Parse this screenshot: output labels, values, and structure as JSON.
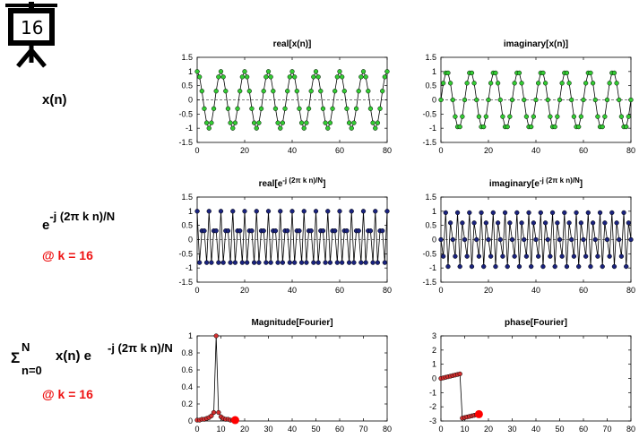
{
  "slide": {
    "number": "16",
    "label_xn": "x(n)",
    "label_exp_base": "e",
    "label_exp_sup": "-j (2π k n)/N",
    "label_k": "@ k = 16",
    "label_sum_sigma": "Σ",
    "label_sum_sup": "N",
    "label_sum_sub": "n=0",
    "label_sum_body": "x(n) e",
    "label_sum_sup2": "-j (2π k n)/N",
    "label_k2": "@ k = 16"
  },
  "colors": {
    "green": "#33cc33",
    "blue": "#1a237e",
    "red": "#d32f2f",
    "bigred": "#ff0000"
  },
  "chart_data": [
    {
      "type": "line",
      "title": "real[x(n)]",
      "xlim": [
        0,
        80
      ],
      "ylim": [
        -1.5,
        1.5
      ],
      "xticks": [
        0,
        20,
        40,
        60,
        80
      ],
      "yticks": [
        1.5,
        1,
        0.5,
        0,
        -0.5,
        -1,
        -1.5
      ],
      "zero_line": true,
      "marker_color": "green",
      "x": [
        0,
        1,
        2,
        3,
        4,
        5,
        6,
        7,
        8,
        9,
        10,
        11,
        12,
        13,
        14,
        15,
        16,
        17,
        18,
        19,
        20,
        21,
        22,
        23,
        24,
        25,
        26,
        27,
        28,
        29,
        30,
        31,
        32,
        33,
        34,
        35,
        36,
        37,
        38,
        39,
        40,
        41,
        42,
        43,
        44,
        45,
        46,
        47,
        48,
        49,
        50,
        51,
        52,
        53,
        54,
        55,
        56,
        57,
        58,
        59,
        60,
        61,
        62,
        63,
        64,
        65,
        66,
        67,
        68,
        69,
        70,
        71,
        72,
        73,
        74,
        75,
        76,
        77,
        78,
        79,
        80
      ],
      "y": [
        1,
        0.81,
        0.31,
        -0.31,
        -0.81,
        -1,
        -0.81,
        -0.31,
        0.31,
        0.81,
        1,
        0.81,
        0.31,
        -0.31,
        -0.81,
        -1,
        -0.81,
        -0.31,
        0.31,
        0.81,
        1,
        0.81,
        0.31,
        -0.31,
        -0.81,
        -1,
        -0.81,
        -0.31,
        0.31,
        0.81,
        1,
        0.81,
        0.31,
        -0.31,
        -0.81,
        -1,
        -0.81,
        -0.31,
        0.31,
        0.81,
        1,
        0.81,
        0.31,
        -0.31,
        -0.81,
        -1,
        -0.81,
        -0.31,
        0.31,
        0.81,
        1,
        0.81,
        0.31,
        -0.31,
        -0.81,
        -1,
        -0.81,
        -0.31,
        0.31,
        0.81,
        1,
        0.81,
        0.31,
        -0.31,
        -0.81,
        -1,
        -0.81,
        -0.31,
        0.31,
        0.81,
        1,
        0.81,
        0.31,
        -0.31,
        -0.81,
        -1,
        -0.81,
        -0.31,
        0.31,
        0.81,
        1
      ]
    },
    {
      "type": "line",
      "title": "imaginary[x(n)]",
      "xlim": [
        0,
        80
      ],
      "ylim": [
        -1.5,
        1.5
      ],
      "xticks": [
        0,
        20,
        40,
        60,
        80
      ],
      "yticks": [
        1.5,
        1,
        0.5,
        0,
        -0.5,
        -1,
        -1.5
      ],
      "zero_line": true,
      "marker_color": "green",
      "x": [
        0,
        1,
        2,
        3,
        4,
        5,
        6,
        7,
        8,
        9,
        10,
        11,
        12,
        13,
        14,
        15,
        16,
        17,
        18,
        19,
        20,
        21,
        22,
        23,
        24,
        25,
        26,
        27,
        28,
        29,
        30,
        31,
        32,
        33,
        34,
        35,
        36,
        37,
        38,
        39,
        40,
        41,
        42,
        43,
        44,
        45,
        46,
        47,
        48,
        49,
        50,
        51,
        52,
        53,
        54,
        55,
        56,
        57,
        58,
        59,
        60,
        61,
        62,
        63,
        64,
        65,
        66,
        67,
        68,
        69,
        70,
        71,
        72,
        73,
        74,
        75,
        76,
        77,
        78,
        79,
        80
      ],
      "y": [
        0,
        0.59,
        0.95,
        0.95,
        0.59,
        0,
        -0.59,
        -0.95,
        -0.95,
        -0.59,
        0,
        0.59,
        0.95,
        0.95,
        0.59,
        0,
        -0.59,
        -0.95,
        -0.95,
        -0.59,
        0,
        0.59,
        0.95,
        0.95,
        0.59,
        0,
        -0.59,
        -0.95,
        -0.95,
        -0.59,
        0,
        0.59,
        0.95,
        0.95,
        0.59,
        0,
        -0.59,
        -0.95,
        -0.95,
        -0.59,
        0,
        0.59,
        0.95,
        0.95,
        0.59,
        0,
        -0.59,
        -0.95,
        -0.95,
        -0.59,
        0,
        0.59,
        0.95,
        0.95,
        0.59,
        0,
        -0.59,
        -0.95,
        -0.95,
        -0.59,
        0,
        0.59,
        0.95,
        0.95,
        0.59,
        0,
        -0.59,
        -0.95,
        -0.95,
        -0.59,
        0,
        0.59,
        0.95,
        0.95,
        0.59,
        0,
        -0.59,
        -0.95,
        -0.95,
        -0.59,
        0
      ]
    },
    {
      "type": "line",
      "title_base": "real[e",
      "title_sup": "-j (2π k n)/N",
      "title_end": "]",
      "xlim": [
        0,
        80
      ],
      "ylim": [
        -1.5,
        1.5
      ],
      "xticks": [
        0,
        20,
        40,
        60,
        80
      ],
      "yticks": [
        1.5,
        1,
        0.5,
        0,
        -0.5,
        -1,
        -1.5
      ],
      "zero_line": true,
      "marker_color": "blue",
      "x": [
        0,
        1,
        2,
        3,
        4,
        5,
        6,
        7,
        8,
        9,
        10,
        11,
        12,
        13,
        14,
        15,
        16,
        17,
        18,
        19,
        20,
        21,
        22,
        23,
        24,
        25,
        26,
        27,
        28,
        29,
        30,
        31,
        32,
        33,
        34,
        35,
        36,
        37,
        38,
        39,
        40,
        41,
        42,
        43,
        44,
        45,
        46,
        47,
        48,
        49,
        50,
        51,
        52,
        53,
        54,
        55,
        56,
        57,
        58,
        59,
        60,
        61,
        62,
        63,
        64,
        65,
        66,
        67,
        68,
        69,
        70,
        71,
        72,
        73,
        74,
        75,
        76,
        77,
        78,
        79,
        80
      ],
      "y": [
        1,
        -0.81,
        0.31,
        0.31,
        -0.81,
        1,
        -0.81,
        0.31,
        0.31,
        -0.81,
        1,
        -0.81,
        0.31,
        0.31,
        -0.81,
        1,
        -0.81,
        0.31,
        0.31,
        -0.81,
        1,
        -0.81,
        0.31,
        0.31,
        -0.81,
        1,
        -0.81,
        0.31,
        0.31,
        -0.81,
        1,
        -0.81,
        0.31,
        0.31,
        -0.81,
        1,
        -0.81,
        0.31,
        0.31,
        -0.81,
        1,
        -0.81,
        0.31,
        0.31,
        -0.81,
        1,
        -0.81,
        0.31,
        0.31,
        -0.81,
        1,
        -0.81,
        0.31,
        0.31,
        -0.81,
        1,
        -0.81,
        0.31,
        0.31,
        -0.81,
        1,
        -0.81,
        0.31,
        0.31,
        -0.81,
        1,
        -0.81,
        0.31,
        0.31,
        -0.81,
        1,
        -0.81,
        0.31,
        0.31,
        -0.81,
        1,
        -0.81,
        0.31,
        0.31,
        -0.81,
        1
      ]
    },
    {
      "type": "line",
      "title_base": "imaginary[e",
      "title_sup": "-j (2π k n)/N",
      "title_end": "]",
      "xlim": [
        0,
        80
      ],
      "ylim": [
        -1.5,
        1.5
      ],
      "xticks": [
        0,
        20,
        40,
        60,
        80
      ],
      "yticks": [
        1.5,
        1,
        0.5,
        0,
        -0.5,
        -1,
        -1.5
      ],
      "zero_line": true,
      "marker_color": "blue",
      "x": [
        0,
        1,
        2,
        3,
        4,
        5,
        6,
        7,
        8,
        9,
        10,
        11,
        12,
        13,
        14,
        15,
        16,
        17,
        18,
        19,
        20,
        21,
        22,
        23,
        24,
        25,
        26,
        27,
        28,
        29,
        30,
        31,
        32,
        33,
        34,
        35,
        36,
        37,
        38,
        39,
        40,
        41,
        42,
        43,
        44,
        45,
        46,
        47,
        48,
        49,
        50,
        51,
        52,
        53,
        54,
        55,
        56,
        57,
        58,
        59,
        60,
        61,
        62,
        63,
        64,
        65,
        66,
        67,
        68,
        69,
        70,
        71,
        72,
        73,
        74,
        75,
        76,
        77,
        78,
        79,
        80
      ],
      "y": [
        0,
        -0.59,
        0.95,
        -0.95,
        0.59,
        0,
        -0.59,
        0.95,
        -0.95,
        0.59,
        0,
        -0.59,
        0.95,
        -0.95,
        0.59,
        0,
        -0.59,
        0.95,
        -0.95,
        0.59,
        0,
        -0.59,
        0.95,
        -0.95,
        0.59,
        0,
        -0.59,
        0.95,
        -0.95,
        0.59,
        0,
        -0.59,
        0.95,
        -0.95,
        0.59,
        0,
        -0.59,
        0.95,
        -0.95,
        0.59,
        0,
        -0.59,
        0.95,
        -0.95,
        0.59,
        0,
        -0.59,
        0.95,
        -0.95,
        0.59,
        0,
        -0.59,
        0.95,
        -0.95,
        0.59,
        0,
        -0.59,
        0.95,
        -0.95,
        0.59,
        0,
        -0.59,
        0.95,
        -0.95,
        0.59,
        0,
        -0.59,
        0.95,
        -0.95,
        0.59,
        0,
        -0.59,
        0.95,
        -0.95,
        0.59,
        0,
        -0.59,
        0.95,
        -0.95,
        0.59,
        0
      ]
    },
    {
      "type": "line",
      "title": "Magnitude[Fourier]",
      "xlim": [
        0,
        80
      ],
      "ylim": [
        0,
        1
      ],
      "xticks": [
        0,
        10,
        20,
        30,
        40,
        50,
        60,
        70,
        80
      ],
      "yticks": [
        1,
        0.8,
        0.6,
        0.4,
        0.2,
        0
      ],
      "zero_line": false,
      "marker_color": "red",
      "x": [
        0,
        1,
        2,
        3,
        4,
        5,
        6,
        7,
        8,
        9,
        10,
        11,
        12,
        13,
        14,
        15,
        16
      ],
      "y": [
        0.01,
        0.01,
        0.02,
        0.02,
        0.03,
        0.04,
        0.06,
        0.1,
        1,
        0.1,
        0.05,
        0.03,
        0.02,
        0.02,
        0.01,
        0.01,
        0.01
      ],
      "highlight": {
        "x": 16,
        "y": 0.01
      }
    },
    {
      "type": "line",
      "title": "phase[Fourier]",
      "xlim": [
        0,
        80
      ],
      "ylim": [
        -3,
        3
      ],
      "xticks": [
        0,
        10,
        20,
        30,
        40,
        50,
        60,
        70,
        80
      ],
      "yticks": [
        3,
        2,
        1,
        0,
        -1,
        -2,
        -3
      ],
      "zero_line": false,
      "marker_color": "red",
      "x": [
        0,
        1,
        2,
        3,
        4,
        5,
        6,
        7,
        8,
        9,
        10,
        11,
        12,
        13,
        14,
        15,
        16
      ],
      "y": [
        0,
        0.04,
        0.08,
        0.12,
        0.16,
        0.2,
        0.24,
        0.28,
        0.32,
        -2.8,
        -2.76,
        -2.72,
        -2.68,
        -2.64,
        -2.6,
        -2.56,
        -2.52
      ],
      "highlight": {
        "x": 16,
        "y": -2.52
      }
    }
  ]
}
